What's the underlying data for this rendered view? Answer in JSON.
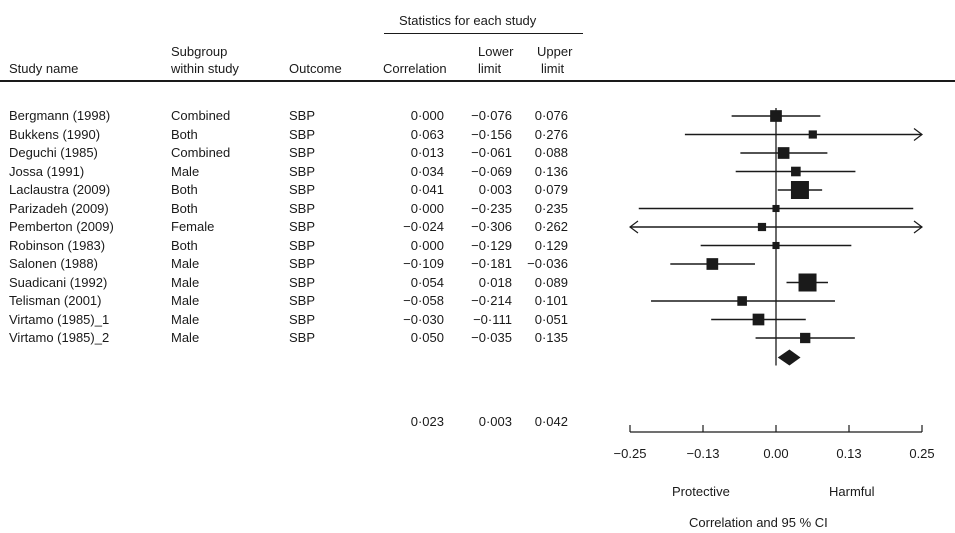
{
  "chart_data": {
    "type": "forest",
    "header_group": "Statistics for each study",
    "columns": {
      "study": "Study name",
      "subgroup": [
        "Subgroup",
        "within study"
      ],
      "outcome": "Outcome",
      "correlation": "Correlation",
      "lower": [
        "Lower",
        "limit"
      ],
      "upper": [
        "Upper",
        "limit"
      ]
    },
    "rows": [
      {
        "study": "Bergmann (1998)",
        "subgroup": "Combined",
        "outcome": "SBP",
        "correlation": "0·000",
        "lower": "−0·076",
        "upper": "0·076",
        "r": 0.0,
        "lo": -0.076,
        "hi": 0.076,
        "weight": 0.55
      },
      {
        "study": "Bukkens (1990)",
        "subgroup": "Both",
        "outcome": "SBP",
        "correlation": "0·063",
        "lower": "−0·156",
        "upper": "0·276",
        "r": 0.063,
        "lo": -0.156,
        "hi": 0.276,
        "weight": 0.3
      },
      {
        "study": "Deguchi (1985)",
        "subgroup": "Combined",
        "outcome": "SBP",
        "correlation": "0·013",
        "lower": "−0·061",
        "upper": "0·088",
        "r": 0.013,
        "lo": -0.061,
        "hi": 0.088,
        "weight": 0.55
      },
      {
        "study": "Jossa (1991)",
        "subgroup": "Male",
        "outcome": "SBP",
        "correlation": "0·034",
        "lower": "−0·069",
        "upper": "0·136",
        "r": 0.034,
        "lo": -0.069,
        "hi": 0.136,
        "weight": 0.4
      },
      {
        "study": "Laclaustra (2009)",
        "subgroup": "Both",
        "outcome": "SBP",
        "correlation": "0·041",
        "lower": "0·003",
        "upper": "0·079",
        "r": 0.041,
        "lo": 0.003,
        "hi": 0.079,
        "weight": 1.0
      },
      {
        "study": "Parizadeh (2009)",
        "subgroup": "Both",
        "outcome": "SBP",
        "correlation": "0·000",
        "lower": "−0·235",
        "upper": "0·235",
        "r": 0.0,
        "lo": -0.235,
        "hi": 0.235,
        "weight": 0.22
      },
      {
        "study": "Pemberton (2009)",
        "subgroup": "Female",
        "outcome": "SBP",
        "correlation": "−0·024",
        "lower": "−0·306",
        "upper": "0·262",
        "r": -0.024,
        "lo": -0.306,
        "hi": 0.262,
        "weight": 0.3
      },
      {
        "study": "Robinson (1983)",
        "subgroup": "Both",
        "outcome": "SBP",
        "correlation": "0·000",
        "lower": "−0·129",
        "upper": "0·129",
        "r": 0.0,
        "lo": -0.129,
        "hi": 0.129,
        "weight": 0.22
      },
      {
        "study": "Salonen (1988)",
        "subgroup": "Male",
        "outcome": "SBP",
        "correlation": "−0·109",
        "lower": "−0·181",
        "upper": "−0·036",
        "r": -0.109,
        "lo": -0.181,
        "hi": -0.036,
        "weight": 0.55
      },
      {
        "study": "Suadicani (1992)",
        "subgroup": "Male",
        "outcome": "SBP",
        "correlation": "0·054",
        "lower": "0·018",
        "upper": "0·089",
        "r": 0.054,
        "lo": 0.018,
        "hi": 0.089,
        "weight": 1.0
      },
      {
        "study": "Telisman (2001)",
        "subgroup": "Male",
        "outcome": "SBP",
        "correlation": "−0·058",
        "lower": "−0·214",
        "upper": "0·101",
        "r": -0.058,
        "lo": -0.214,
        "hi": 0.101,
        "weight": 0.4
      },
      {
        "study": "Virtamo (1985)_1",
        "subgroup": "Male",
        "outcome": "SBP",
        "correlation": "−0·030",
        "lower": "−0·111",
        "upper": "0·051",
        "r": -0.03,
        "lo": -0.111,
        "hi": 0.051,
        "weight": 0.55
      },
      {
        "study": "Virtamo (1985)_2",
        "subgroup": "Male",
        "outcome": "SBP",
        "correlation": "0·050",
        "lower": "−0·035",
        "upper": "0·135",
        "r": 0.05,
        "lo": -0.035,
        "hi": 0.135,
        "weight": 0.45
      }
    ],
    "summary": {
      "correlation": "0·023",
      "lower": "0·003",
      "upper": "0·042",
      "r": 0.023,
      "lo": 0.003,
      "hi": 0.042
    },
    "x_ticks": [
      {
        "value": -0.25,
        "label": "−0.25"
      },
      {
        "value": -0.125,
        "label": "−0.13"
      },
      {
        "value": 0.0,
        "label": "0.00"
      },
      {
        "value": 0.125,
        "label": "0.13"
      },
      {
        "value": 0.25,
        "label": "0.25"
      }
    ],
    "xlim": [
      -0.25,
      0.25
    ],
    "left_label": "Protective",
    "right_label": "Harmful",
    "xlabel": "Correlation and 95 % CI"
  }
}
